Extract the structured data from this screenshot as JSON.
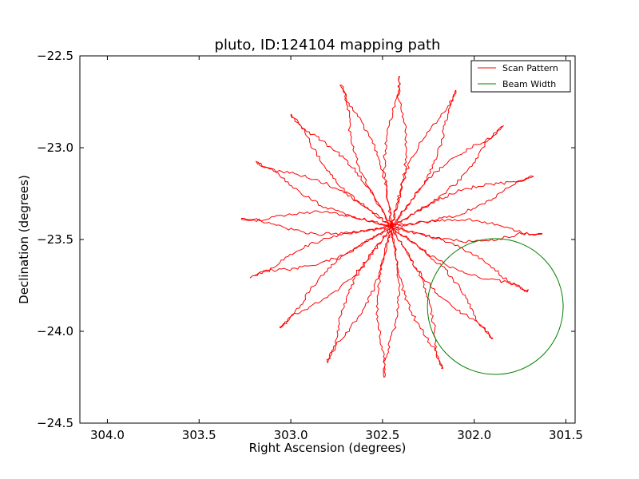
{
  "chart_data": {
    "type": "line",
    "title": "pluto, ID:124104 mapping path",
    "xlabel": "Right Ascension (degrees)",
    "ylabel": "Declination (degrees)",
    "xlim": [
      304.15,
      301.45
    ],
    "ylim": [
      -24.5,
      -22.5
    ],
    "x_inverted": true,
    "xticks": [
      304.0,
      303.5,
      303.0,
      302.5,
      302.0,
      301.5
    ],
    "xtick_labels": [
      "304.0",
      "303.5",
      "303.0",
      "302.5",
      "302.0",
      "301.5"
    ],
    "yticks": [
      -24.5,
      -24.0,
      -23.5,
      -23.0,
      -22.5
    ],
    "ytick_labels": [
      "−24.5",
      "−24.0",
      "−23.5",
      "−23.0",
      "−22.5"
    ],
    "grid": false,
    "legend_position": "top-right",
    "series": [
      {
        "name": "Scan Pattern",
        "color": "#ff0000",
        "pattern": "rosette",
        "center": [
          302.45,
          -23.43
        ],
        "petals": 16,
        "petal_length_deg": 0.82
      },
      {
        "name": "Beam Width",
        "color": "#008000",
        "pattern": "circle",
        "center": [
          301.885,
          -23.865
        ],
        "radius": 0.37
      }
    ]
  }
}
